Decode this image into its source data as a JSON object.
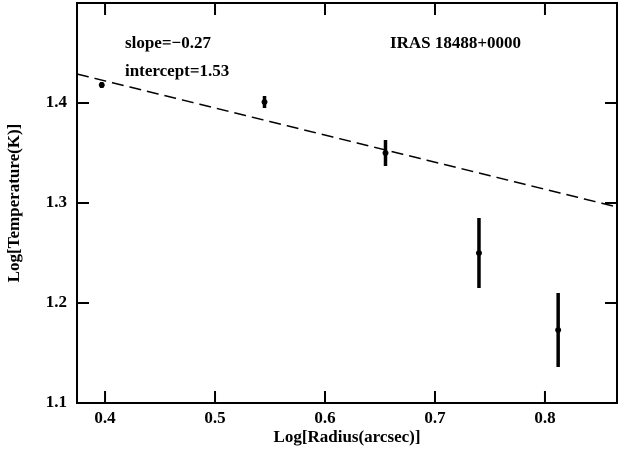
{
  "chart_data": {
    "type": "scatter",
    "x_label": "Log[Radius(arcsec)]",
    "y_label": "Log[Temperature(K)]",
    "annotations": [
      "slope=−0.27",
      "intercept=1.53",
      "IRAS 18488+0000"
    ],
    "x": [
      0.397,
      0.545,
      0.655,
      0.74,
      0.812
    ],
    "values": [
      1.418,
      1.401,
      1.35,
      1.25,
      1.173
    ],
    "errors": [
      0.003,
      0.006,
      0.013,
      0.035,
      0.037
    ],
    "color": "#000000",
    "fit_line": {
      "x": [
        0.3745,
        0.8655
      ],
      "values": [
        1.429,
        1.296
      ]
    },
    "xlim": [
      0.3745,
      0.8655
    ],
    "xticks": [
      0.4,
      0.5,
      0.6,
      0.7,
      0.8
    ],
    "ylim": [
      1.1,
      1.5
    ],
    "yticks": [
      1.1,
      1.2,
      1.3,
      1.4
    ]
  }
}
